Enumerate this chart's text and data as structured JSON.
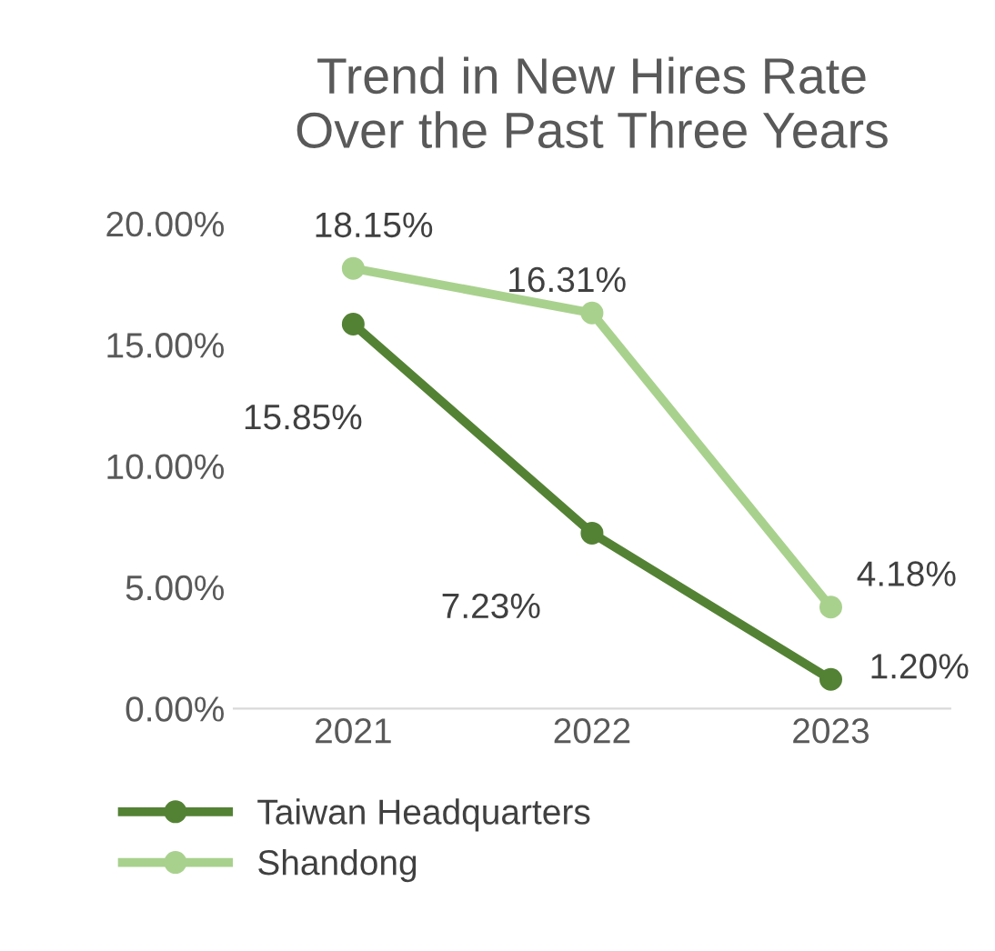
{
  "chart_data": {
    "type": "line",
    "title": "Trend in New Hires Rate\nOver the Past Three Years",
    "categories": [
      "2021",
      "2022",
      "2023"
    ],
    "series": [
      {
        "name": "Taiwan Headquarters",
        "color": "#548235",
        "values": [
          15.85,
          7.23,
          1.2
        ],
        "value_labels": [
          "15.85%",
          "7.23%",
          "1.20%"
        ]
      },
      {
        "name": "Shandong",
        "color": "#a9d18e",
        "values": [
          18.15,
          16.31,
          4.18
        ],
        "value_labels": [
          "18.15%",
          "16.31%",
          "4.18%"
        ]
      }
    ],
    "ylim": [
      0,
      20
    ],
    "yticks": [
      {
        "value": 0,
        "label": "0.00%"
      },
      {
        "value": 5,
        "label": "5.00%"
      },
      {
        "value": 10,
        "label": "10.00%"
      },
      {
        "value": 15,
        "label": "15.00%"
      },
      {
        "value": 20,
        "label": "20.00%"
      }
    ],
    "grid": false,
    "legend": "bottom",
    "marker": "circle",
    "line_style": "solid"
  }
}
